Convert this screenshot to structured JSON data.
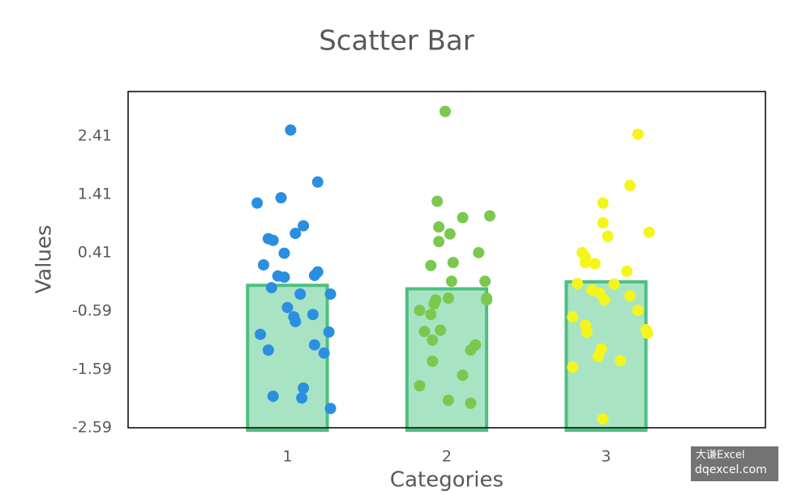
{
  "chart_data": {
    "type": "bar",
    "title": "Scatter Bar",
    "xlabel": "Categories",
    "ylabel": "Values",
    "x": [
      1,
      2,
      3
    ],
    "values": [
      -0.15,
      -0.21,
      -0.09
    ],
    "color": "#a8e4c4",
    "edgecolor": "#4cc080",
    "xlim": [
      0,
      4
    ],
    "xticks": [
      1,
      2,
      3
    ],
    "ylim": [
      -2.59,
      3.17
    ],
    "yticks": [
      -2.59,
      -1.59,
      -0.59,
      0.41,
      1.41,
      2.41
    ],
    "grid": false,
    "series": [
      {
        "color": "#2b8fe0",
        "x": [
          1.02,
          1.19,
          0.81,
          0.96,
          1.1,
          1.05,
          0.88,
          0.91,
          0.98,
          0.85,
          1.19,
          1.17,
          0.94,
          0.98,
          0.9,
          1.08,
          1.27,
          1.0,
          1.16,
          1.04,
          1.05,
          0.83,
          1.26,
          1.17,
          0.88,
          1.23,
          1.1,
          0.91,
          1.09,
          1.27
        ],
        "values": [
          2.51,
          1.62,
          1.26,
          1.35,
          0.87,
          0.74,
          0.65,
          0.62,
          0.4,
          0.2,
          0.08,
          0.02,
          0.01,
          -0.01,
          -0.19,
          -0.3,
          -0.3,
          -0.53,
          -0.65,
          -0.69,
          -0.77,
          -0.99,
          -0.95,
          -1.17,
          -1.26,
          -1.31,
          -1.91,
          -2.05,
          -2.08,
          -2.26
        ]
      },
      {
        "color": "#7ac94e",
        "x": [
          1.99,
          1.94,
          2.1,
          2.27,
          1.95,
          2.02,
          1.95,
          2.2,
          2.04,
          1.9,
          2.03,
          2.24,
          1.93,
          2.01,
          1.92,
          2.25,
          2.25,
          1.83,
          1.9,
          1.86,
          1.96,
          1.91,
          2.18,
          2.15,
          1.91,
          2.1,
          1.83,
          2.01,
          2.15
        ],
        "values": [
          2.83,
          1.29,
          1.01,
          1.04,
          0.85,
          0.73,
          0.6,
          0.41,
          0.24,
          0.19,
          -0.08,
          -0.08,
          -0.4,
          -0.37,
          -0.47,
          -0.4,
          -0.37,
          -0.58,
          -0.65,
          -0.94,
          -0.92,
          -1.09,
          -1.17,
          -1.26,
          -1.45,
          -1.69,
          -1.87,
          -2.12,
          -2.17
        ]
      },
      {
        "color": "#f5f51b",
        "x": [
          3.2,
          3.15,
          2.98,
          2.98,
          3.27,
          3.01,
          2.85,
          2.87,
          2.87,
          2.93,
          3.13,
          2.82,
          3.05,
          2.91,
          2.96,
          3.15,
          2.99,
          3.2,
          2.79,
          2.87,
          2.88,
          3.25,
          3.26,
          2.97,
          2.95,
          3.09,
          2.79,
          2.98
        ],
        "values": [
          2.44,
          1.56,
          1.26,
          0.92,
          0.76,
          0.69,
          0.41,
          0.33,
          0.24,
          0.22,
          0.09,
          -0.12,
          -0.13,
          -0.23,
          -0.28,
          -0.33,
          -0.4,
          -0.58,
          -0.69,
          -0.83,
          -0.95,
          -0.91,
          -0.97,
          -1.24,
          -1.37,
          -1.44,
          -1.55,
          -2.44
        ]
      }
    ],
    "watermark": [
      "大谦Excel",
      "dqexcel.com"
    ]
  }
}
